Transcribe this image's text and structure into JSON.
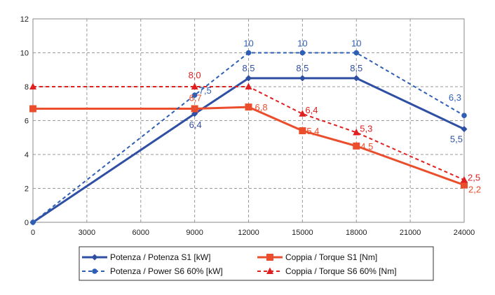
{
  "chart_data": {
    "type": "line",
    "x": [
      0,
      9000,
      12000,
      15000,
      18000,
      24000
    ],
    "xlim": [
      0,
      24000
    ],
    "ylim": [
      0,
      12
    ],
    "x_ticks": [
      "0",
      "3000",
      "6000",
      "9000",
      "12000",
      "15000",
      "18000",
      "21000",
      "24000"
    ],
    "y_ticks": [
      "0",
      "2",
      "4",
      "6",
      "8",
      "10",
      "12"
    ],
    "grid": true,
    "legend_position": "bottom",
    "series": [
      {
        "name": "Potenza / Potenza S1 [kW]",
        "color": "#2e4fa3",
        "dash": "solid",
        "marker": "diamond",
        "x": [
          0,
          9000,
          12000,
          15000,
          18000,
          24000
        ],
        "values": [
          0,
          6.4,
          8.5,
          8.5,
          8.5,
          5.5
        ],
        "labels": [
          "",
          "6,4",
          "8,5",
          "8,5",
          "8,5",
          "5,5"
        ]
      },
      {
        "name": "Coppia / Torque S1 [Nm]",
        "color": "#ea4e2c",
        "dash": "solid",
        "marker": "square",
        "x": [
          0,
          9000,
          12000,
          15000,
          18000,
          24000
        ],
        "values": [
          6.7,
          6.7,
          6.8,
          5.4,
          4.5,
          2.2
        ],
        "labels": [
          "",
          "6,7",
          "6,8",
          "5,4",
          "4,5",
          "2,2"
        ]
      },
      {
        "name": "Potenza / Power S6 60% [kW]",
        "color": "#2e5fb5",
        "dash": "dashed",
        "marker": "circle",
        "x": [
          0,
          9000,
          12000,
          15000,
          18000,
          24000
        ],
        "values": [
          0,
          7.5,
          10,
          10,
          10,
          6.3
        ],
        "labels": [
          "",
          "7,5",
          "10",
          "10",
          "10",
          "6,3"
        ]
      },
      {
        "name": "Coppia / Torque S6 60% [Nm]",
        "color": "#e02020",
        "dash": "dashed",
        "marker": "triangle",
        "x": [
          0,
          9000,
          12000,
          15000,
          18000,
          24000
        ],
        "values": [
          8.0,
          8.0,
          8.0,
          6.4,
          5.3,
          2.5
        ],
        "labels": [
          "",
          "8,0",
          "",
          "6,4",
          "5,3",
          "2,5"
        ]
      }
    ]
  }
}
